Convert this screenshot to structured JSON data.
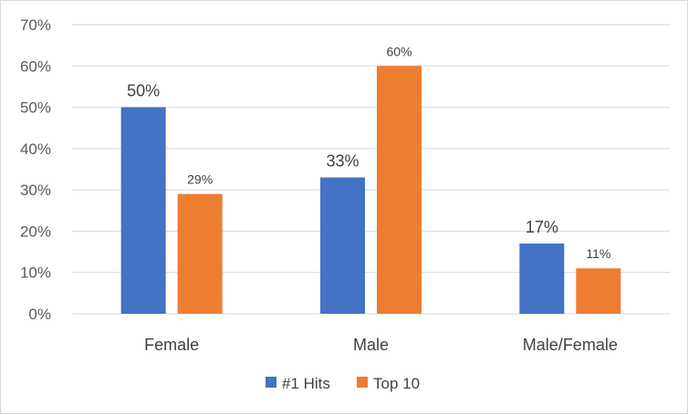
{
  "chart_data": {
    "type": "bar",
    "categories": [
      "Female",
      "Male",
      "Male/Female"
    ],
    "series": [
      {
        "name": "#1 Hits",
        "values": [
          50,
          33,
          17
        ],
        "labels": [
          "50%",
          "33%",
          "17%"
        ],
        "color": "#4472C4"
      },
      {
        "name": "Top 10",
        "values": [
          29,
          60,
          11
        ],
        "labels": [
          "29%",
          "60%",
          "11%"
        ],
        "color": "#ED7D31"
      }
    ],
    "ylim": [
      0,
      70
    ],
    "yticks": [
      0,
      10,
      20,
      30,
      40,
      50,
      60,
      70
    ],
    "ytick_labels": [
      "0%",
      "10%",
      "20%",
      "30%",
      "40%",
      "50%",
      "60%",
      "70%"
    ],
    "grid": true,
    "legend_position": "bottom",
    "title": "",
    "xlabel": "",
    "ylabel": ""
  }
}
